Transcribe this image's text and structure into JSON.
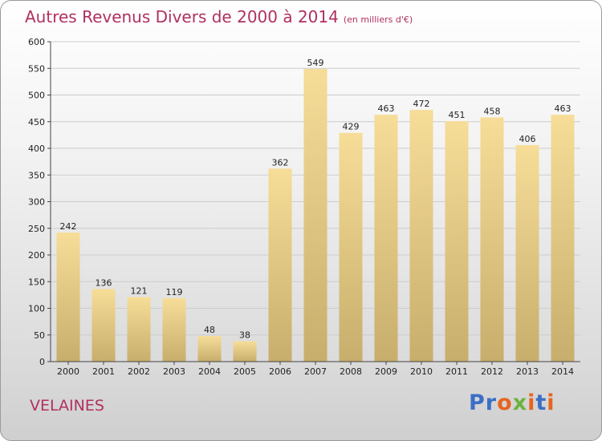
{
  "page": {
    "title": "Autres Revenus Divers de 2000 à 2014",
    "unit": "(en milliers d'€)",
    "place": "VELAINES",
    "logo": [
      "P",
      "r",
      "o",
      "x",
      "i",
      "t",
      "i"
    ]
  },
  "colors": {
    "title": "#b03060",
    "bar_light": "#f6dd98",
    "bar_dark": "#c8ae6c",
    "grid": "#cccccc",
    "logo": [
      "#3c6fc4",
      "#3c6fc4",
      "#e8641e",
      "#6cb33f",
      "#e8641e",
      "#3c6fc4",
      "#e8641e"
    ]
  },
  "chart_data": {
    "type": "bar",
    "categories": [
      "2000",
      "2001",
      "2002",
      "2003",
      "2004",
      "2005",
      "2006",
      "2007",
      "2008",
      "2009",
      "2010",
      "2011",
      "2012",
      "2013",
      "2014"
    ],
    "values": [
      242,
      136,
      121,
      119,
      48,
      38,
      362,
      549,
      429,
      463,
      472,
      451,
      458,
      406,
      463
    ],
    "title": "Autres Revenus Divers de 2000 à 2014",
    "subtitle": "(en milliers d'€)",
    "xlabel": "",
    "ylabel": "",
    "ylim": [
      0,
      600
    ],
    "yticks": [
      0,
      50,
      100,
      150,
      200,
      250,
      300,
      350,
      400,
      450,
      500,
      550,
      600
    ],
    "grid": true,
    "legend": "none"
  }
}
